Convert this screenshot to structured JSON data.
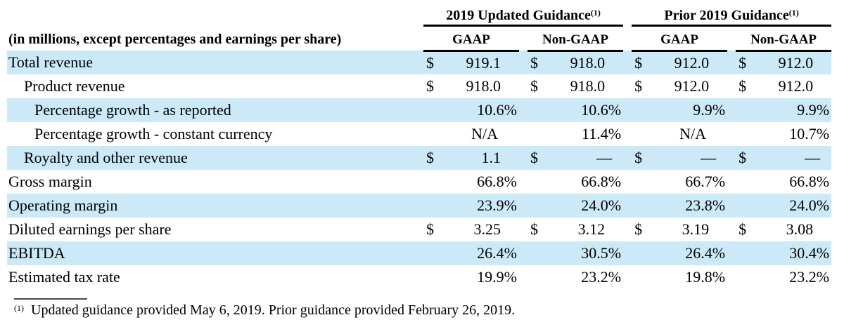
{
  "colors": {
    "stripe": "#cce9f8",
    "rule": "#000000",
    "text": "#000000"
  },
  "header": {
    "caption": "(in millions, except percentages and earnings per share)",
    "groups": [
      {
        "label": "2019 Updated Guidance",
        "sup": "(1)"
      },
      {
        "label": "Prior 2019 Guidance",
        "sup": "(1)"
      }
    ],
    "subcols": [
      "GAAP",
      "Non-GAAP",
      "GAAP",
      "Non-GAAP"
    ]
  },
  "table": {
    "rows": [
      {
        "label": "Total revenue",
        "indent": 0,
        "stripe": true,
        "cells": [
          {
            "sym": "$",
            "val": "919.1",
            "type": "money"
          },
          {
            "sym": "$",
            "val": "918.0",
            "type": "money"
          },
          {
            "sym": "$",
            "val": "912.0",
            "type": "money"
          },
          {
            "sym": "$",
            "val": "912.0",
            "type": "money"
          }
        ]
      },
      {
        "label": "Product revenue",
        "indent": 1,
        "stripe": false,
        "cells": [
          {
            "sym": "$",
            "val": "918.0",
            "type": "money"
          },
          {
            "sym": "$",
            "val": "918.0",
            "type": "money"
          },
          {
            "sym": "$",
            "val": "912.0",
            "type": "money"
          },
          {
            "sym": "$",
            "val": "912.0",
            "type": "money"
          }
        ]
      },
      {
        "label": "Percentage growth - as reported",
        "indent": 2,
        "stripe": true,
        "cells": [
          {
            "sym": "",
            "val": "10.6%",
            "type": "pct"
          },
          {
            "sym": "",
            "val": "10.6%",
            "type": "pct"
          },
          {
            "sym": "",
            "val": "9.9%",
            "type": "pct"
          },
          {
            "sym": "",
            "val": "9.9%",
            "type": "pct"
          }
        ]
      },
      {
        "label": "Percentage growth - constant currency",
        "indent": 2,
        "stripe": false,
        "cells": [
          {
            "sym": "",
            "val": "N/A",
            "type": "na"
          },
          {
            "sym": "",
            "val": "11.4%",
            "type": "pct"
          },
          {
            "sym": "",
            "val": "N/A",
            "type": "na"
          },
          {
            "sym": "",
            "val": "10.7%",
            "type": "pct"
          }
        ]
      },
      {
        "label": "Royalty and other revenue",
        "indent": 1,
        "stripe": true,
        "cells": [
          {
            "sym": "$",
            "val": "1.1",
            "type": "money"
          },
          {
            "sym": "$",
            "val": "—",
            "type": "dash"
          },
          {
            "sym": "$",
            "val": "—",
            "type": "dash"
          },
          {
            "sym": "$",
            "val": "—",
            "type": "dash"
          }
        ]
      },
      {
        "label": "Gross margin",
        "indent": 0,
        "stripe": false,
        "cells": [
          {
            "sym": "",
            "val": "66.8%",
            "type": "pct"
          },
          {
            "sym": "",
            "val": "66.8%",
            "type": "pct"
          },
          {
            "sym": "",
            "val": "66.7%",
            "type": "pct"
          },
          {
            "sym": "",
            "val": "66.8%",
            "type": "pct"
          }
        ]
      },
      {
        "label": "Operating margin",
        "indent": 0,
        "stripe": true,
        "cells": [
          {
            "sym": "",
            "val": "23.9%",
            "type": "pct"
          },
          {
            "sym": "",
            "val": "24.0%",
            "type": "pct"
          },
          {
            "sym": "",
            "val": "23.8%",
            "type": "pct"
          },
          {
            "sym": "",
            "val": "24.0%",
            "type": "pct"
          }
        ]
      },
      {
        "label": "Diluted earnings per share",
        "indent": 0,
        "stripe": false,
        "cells": [
          {
            "sym": "$",
            "val": "3.25",
            "type": "money"
          },
          {
            "sym": "$",
            "val": "3.12",
            "type": "money"
          },
          {
            "sym": "$",
            "val": "3.19",
            "type": "money"
          },
          {
            "sym": "$",
            "val": "3.08",
            "type": "money"
          }
        ]
      },
      {
        "label": "EBITDA",
        "indent": 0,
        "stripe": true,
        "cells": [
          {
            "sym": "",
            "val": "26.4%",
            "type": "pct"
          },
          {
            "sym": "",
            "val": "30.5%",
            "type": "pct"
          },
          {
            "sym": "",
            "val": "26.4%",
            "type": "pct"
          },
          {
            "sym": "",
            "val": "30.4%",
            "type": "pct"
          }
        ]
      },
      {
        "label": "Estimated tax rate",
        "indent": 0,
        "stripe": false,
        "cells": [
          {
            "sym": "",
            "val": "19.9%",
            "type": "pct"
          },
          {
            "sym": "",
            "val": "23.2%",
            "type": "pct"
          },
          {
            "sym": "",
            "val": "19.8%",
            "type": "pct"
          },
          {
            "sym": "",
            "val": "23.2%",
            "type": "pct"
          }
        ]
      }
    ]
  },
  "footnote": {
    "sup": "(1)",
    "text": "Updated guidance provided May 6, 2019. Prior guidance provided February 26, 2019."
  }
}
